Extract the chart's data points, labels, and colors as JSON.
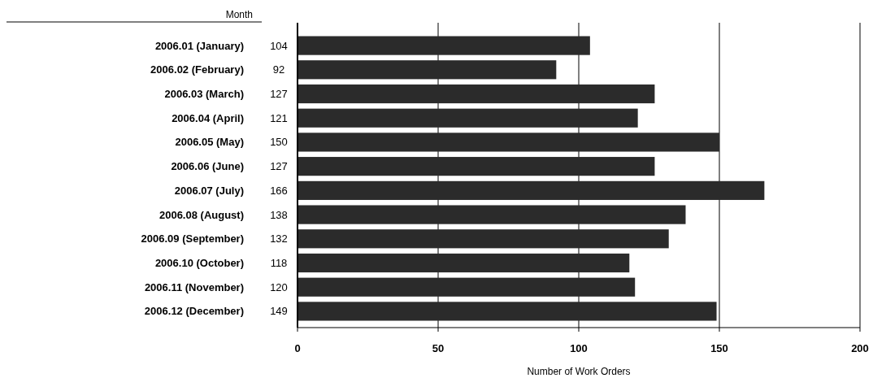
{
  "chart_data": {
    "type": "bar",
    "orientation": "horizontal",
    "ylabel": "Month",
    "xlabel": "Number of Work Orders",
    "categories": [
      "2006.01 (January)",
      "2006.02 (February)",
      "2006.03 (March)",
      "2006.04 (April)",
      "2006.05 (May)",
      "2006.06 (June)",
      "2006.07 (July)",
      "2006.08 (August)",
      "2006.09 (September)",
      "2006.10 (October)",
      "2006.11 (November)",
      "2006.12 (December)"
    ],
    "values": [
      104,
      92,
      127,
      121,
      150,
      127,
      166,
      138,
      132,
      118,
      120,
      149
    ],
    "color": "#2b2b2b",
    "xlim": [
      0,
      200
    ],
    "xticks": [
      0,
      50,
      100,
      150,
      200
    ],
    "grid": "x",
    "data_labels": true
  }
}
